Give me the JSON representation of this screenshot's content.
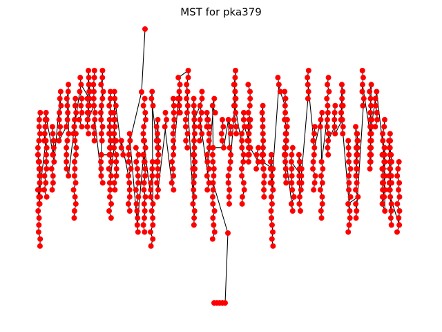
{
  "title": "MST for pka379"
}
